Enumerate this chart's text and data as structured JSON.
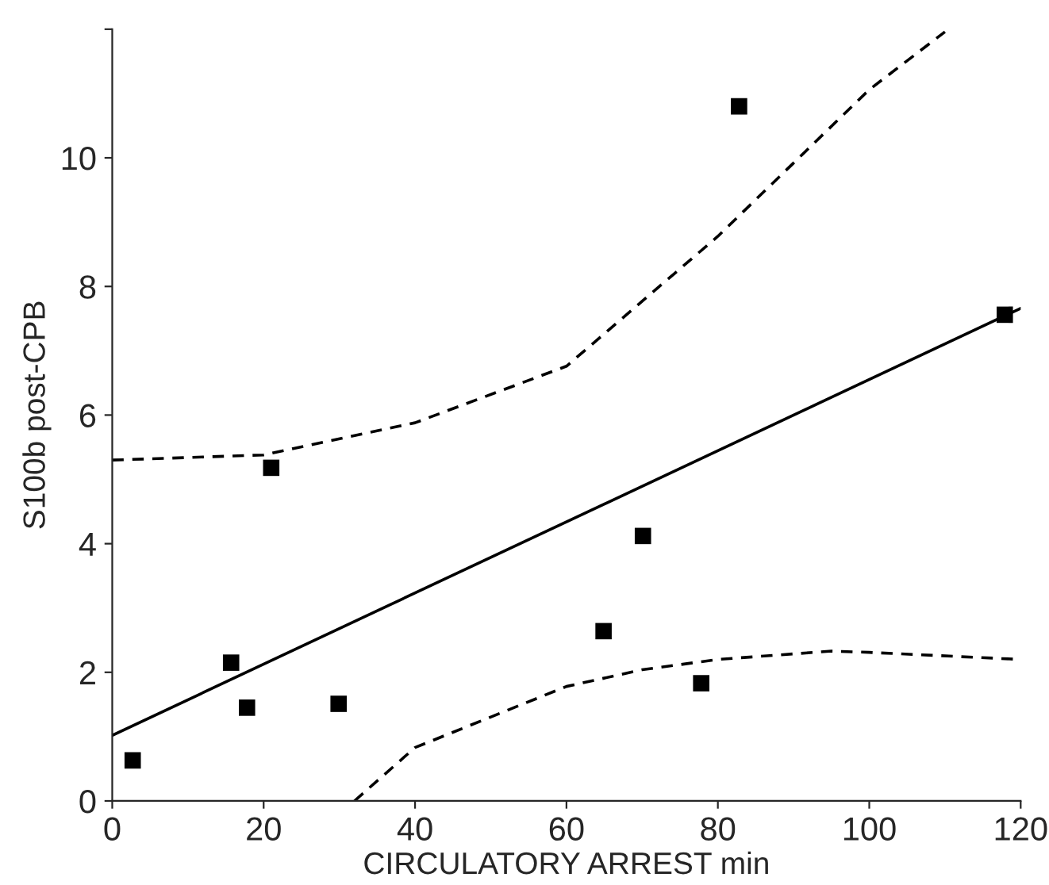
{
  "chart_data": {
    "type": "scatter",
    "xlabel": "CIRCULATORY ARREST min",
    "ylabel": "S100b post-CPB",
    "xlim": [
      0,
      120
    ],
    "xticks": [
      0,
      20,
      40,
      60,
      80,
      100,
      120
    ],
    "ylim": [
      0,
      12
    ],
    "yticks": [
      0,
      2,
      4,
      6,
      8,
      10,
      {
        "value": 12,
        "label": null
      }
    ],
    "grid": false,
    "legend": false,
    "series": [
      {
        "color": "#000000",
        "marker": "square",
        "x": [
          2.7,
          15.7,
          17.8,
          21,
          29.9,
          64.9,
          70.1,
          77.8,
          82.8,
          117.9
        ],
        "values": [
          0.63,
          2.15,
          1.45,
          5.18,
          1.51,
          2.64,
          4.12,
          1.83,
          10.8,
          7.56
        ]
      },
      {
        "type": "line",
        "color": "#000000",
        "line_style": "solid",
        "marker": "none",
        "x": [
          0,
          120
        ],
        "values": [
          1.02,
          7.66
        ]
      },
      {
        "type": "line",
        "color": "#000000",
        "line_style": "dashed",
        "marker": "none",
        "x": [
          0,
          20,
          40,
          60,
          80,
          100,
          110
        ],
        "values": [
          5.3,
          5.38,
          5.88,
          6.76,
          8.78,
          11.06,
          11.96
        ]
      },
      {
        "type": "line",
        "color": "#000000",
        "line_style": "dashed",
        "marker": "none",
        "x": [
          32,
          40,
          60,
          70,
          80,
          95,
          100,
          120
        ],
        "values": [
          0,
          0.83,
          1.78,
          2.04,
          2.2,
          2.33,
          2.31,
          2.2
        ]
      }
    ]
  }
}
